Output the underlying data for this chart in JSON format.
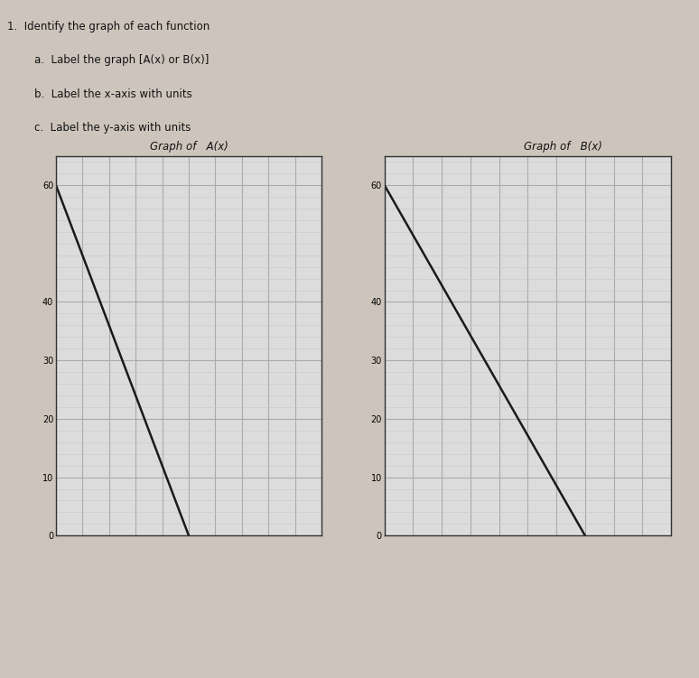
{
  "left_graph": {
    "title_prefix": "Graph of",
    "title_label": "A(x)",
    "line_x": [
      0,
      5
    ],
    "line_y": [
      60,
      0
    ],
    "xlim": [
      0,
      10
    ],
    "ylim": [
      0,
      65
    ],
    "yticks": [
      0,
      10,
      20,
      30,
      40,
      60
    ],
    "xticks": [
      0,
      1,
      2,
      3,
      4,
      5,
      6,
      7,
      8,
      9,
      10
    ],
    "line_color": "#1a1a1a",
    "grid_color": "#aaaaaa",
    "bg_color": "#dcdcdc",
    "minor_grid_color": "#c8c8c8"
  },
  "right_graph": {
    "title_prefix": "Graph of",
    "title_label": "B(x)",
    "line_x": [
      0,
      7
    ],
    "line_y": [
      60,
      0
    ],
    "xlim": [
      0,
      10
    ],
    "ylim": [
      0,
      65
    ],
    "yticks": [
      0,
      10,
      20,
      30,
      40,
      60
    ],
    "xticks": [
      0,
      1,
      2,
      3,
      4,
      5,
      6,
      7,
      8,
      9,
      10
    ],
    "line_color": "#1a1a1a",
    "grid_color": "#aaaaaa",
    "bg_color": "#dcdcdc",
    "minor_grid_color": "#c8c8c8"
  },
  "instruction_lines": [
    "1.  Identify the graph of each function",
    "    a.  Label the graph [A(x) or B(x)]",
    "    b.  Label the x-axis with units",
    "    c.  Label the y-axis with units"
  ],
  "fig_bg_color": "#cdc5bc"
}
